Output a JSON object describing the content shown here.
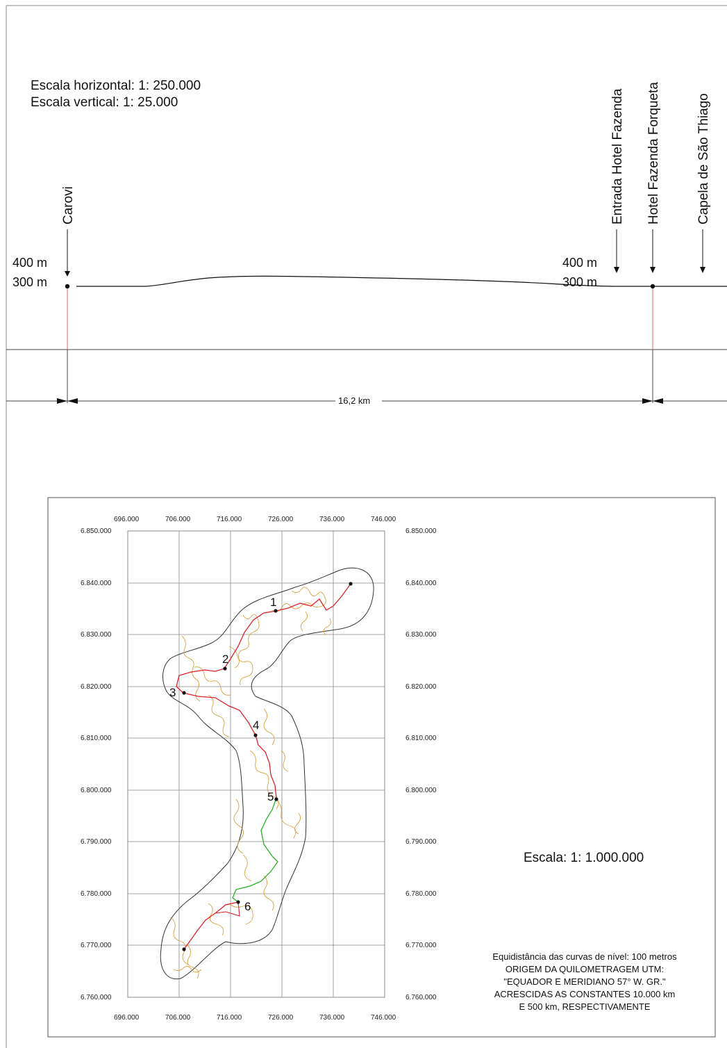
{
  "profile": {
    "scale_horizontal": "Escala horizontal: 1: 250.000",
    "scale_vertical": "Escala vertical: 1: 25.000",
    "locations": [
      "Carovi",
      "Entrada Hotel Fazenda",
      "Hotel Fazenda Forqueta",
      "Capela de São Thiago"
    ],
    "elevation_labels_left": [
      "400 m",
      "300 m"
    ],
    "elevation_labels_right": [
      "400 m",
      "300 m"
    ],
    "distance_label": "16,2 km"
  },
  "map": {
    "x_ticks": [
      "696.000",
      "706.000",
      "716.000",
      "726.000",
      "736.000",
      "746.000"
    ],
    "y_ticks": [
      "6.850.000",
      "6.840.000",
      "6.830.000",
      "6.820.000",
      "6.810.000",
      "6.800.000",
      "6.790.000",
      "6.780.000",
      "6.770.000",
      "6.760.000"
    ],
    "points": [
      "1",
      "2",
      "3",
      "4",
      "5",
      "6"
    ],
    "scale": "Escala: 1: 1.000.000",
    "notes": [
      "Equidistância das curvas de nível: 100 metros",
      "ORIGEM DA QUILOMETRAGEM UTM:",
      "\"EQUADOR E MERIDIANO 57° W. GR.\"",
      "ACRESCIDAS AS CONSTANTES 10.000 km",
      "E 500 km, RESPECTIVAMENTE"
    ],
    "colors": {
      "route_red": "#e0202a",
      "route_green": "#22b422",
      "contours": "#d9a040",
      "boundary": "#333333",
      "grid": "#888888"
    }
  }
}
